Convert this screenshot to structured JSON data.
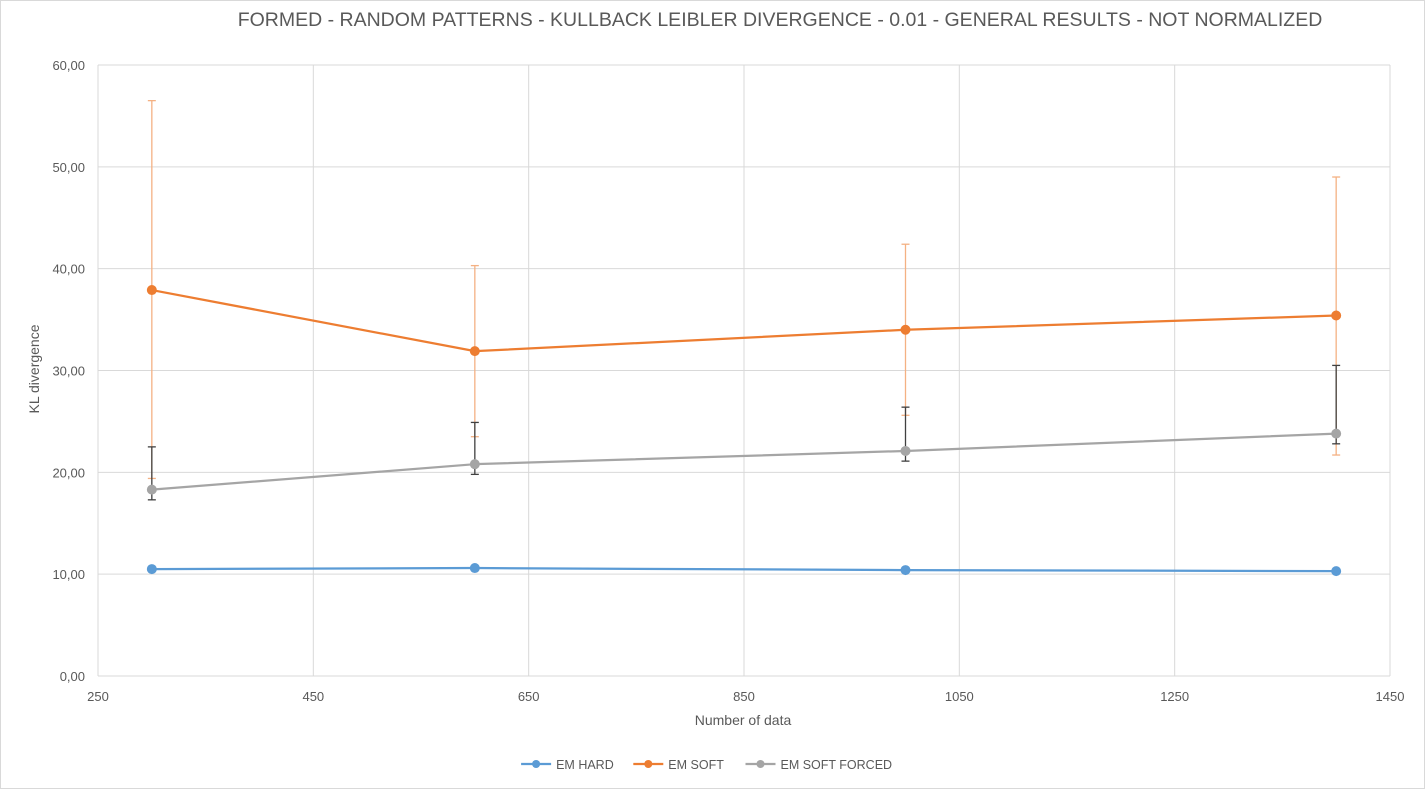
{
  "chart_data": {
    "type": "line",
    "title": "FORMED - RANDOM PATTERNS - KULLBACK LEIBLER DIVERGENCE - 0.01 - GENERAL RESULTS - NOT NORMALIZED",
    "xlabel": "Number of data",
    "ylabel": "KL divergence",
    "xlim": [
      250,
      1450
    ],
    "ylim": [
      0,
      60
    ],
    "x_ticks": [
      250,
      450,
      650,
      850,
      1050,
      1250,
      1450
    ],
    "y_ticks": [
      "0,00",
      "10,00",
      "20,00",
      "30,00",
      "40,00",
      "50,00",
      "60,00"
    ],
    "y_tick_values": [
      0,
      10,
      20,
      30,
      40,
      50,
      60
    ],
    "grid": true,
    "legend_position": "bottom",
    "series": [
      {
        "name": "EM HARD",
        "color": "#5b9bd5",
        "points": [
          {
            "x": 300,
            "y": 10.5
          },
          {
            "x": 600,
            "y": 10.6
          },
          {
            "x": 1000,
            "y": 10.4
          },
          {
            "x": 1400,
            "y": 10.3
          }
        ]
      },
      {
        "name": "EM SOFT",
        "color": "#ed7d31",
        "error_color": "#f4b183",
        "points": [
          {
            "x": 300,
            "y": 37.9,
            "err_low": 19.4,
            "err_high": 56.5
          },
          {
            "x": 600,
            "y": 31.9,
            "err_low": 23.5,
            "err_high": 40.3
          },
          {
            "x": 1000,
            "y": 34.0,
            "err_low": 25.6,
            "err_high": 42.4
          },
          {
            "x": 1400,
            "y": 35.4,
            "err_low": 21.7,
            "err_high": 49.0
          }
        ]
      },
      {
        "name": "EM SOFT FORCED",
        "color": "#a5a5a5",
        "error_color": "#404040",
        "points": [
          {
            "x": 300,
            "y": 18.3,
            "err_low": 17.3,
            "err_high": 22.5
          },
          {
            "x": 600,
            "y": 20.8,
            "err_low": 19.8,
            "err_high": 24.9
          },
          {
            "x": 1000,
            "y": 22.1,
            "err_low": 21.1,
            "err_high": 26.4
          },
          {
            "x": 1400,
            "y": 23.8,
            "err_low": 22.8,
            "err_high": 30.5
          }
        ]
      }
    ]
  }
}
